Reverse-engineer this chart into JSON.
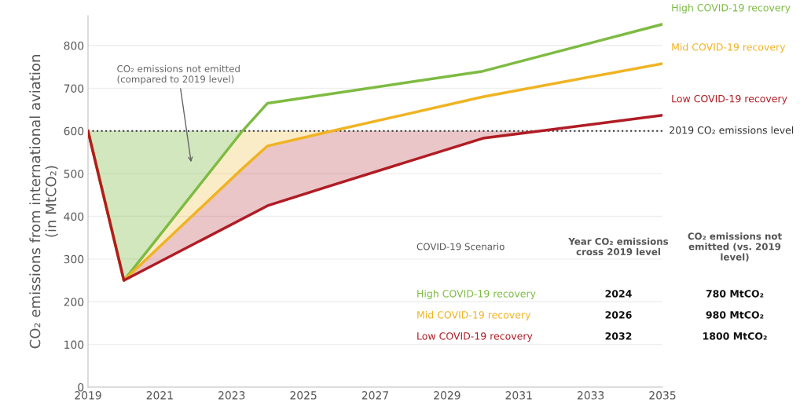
{
  "chart_data": {
    "type": "line",
    "ylabel": "CO₂ emissions from international aviation\n(in MtCO₂)",
    "series": [
      {
        "name": "High COVID-19 recovery",
        "color": "#7dbb42",
        "x": [
          2019,
          2020,
          2023.3,
          2024,
          2030,
          2035
        ],
        "values": [
          600,
          250,
          600,
          665,
          740,
          850
        ],
        "lower": [
          600,
          250,
          600,
          null,
          null,
          null
        ],
        "upper": [
          600,
          600,
          600,
          null,
          null,
          null
        ]
      },
      {
        "name": "Mid COVID-19 recovery",
        "color": "#f0b323",
        "x": [
          2019,
          2020,
          2023.3,
          2024,
          2025.8,
          2030,
          2035
        ],
        "values": [
          600,
          250,
          512,
          565,
          600,
          680,
          758
        ],
        "lower": [
          600,
          250,
          512,
          565,
          600,
          null,
          null
        ],
        "upper": [
          600,
          250,
          600,
          600,
          600,
          null,
          null
        ]
      },
      {
        "name": "Low COVID-19 recovery",
        "color": "#b01c24",
        "x": [
          2019,
          2020,
          2024,
          2025.8,
          2030,
          2031.6,
          2035
        ],
        "values": [
          600,
          250,
          425,
          473,
          583,
          600,
          637
        ],
        "lower": [
          600,
          250,
          425,
          473,
          583,
          600,
          null
        ],
        "upper": [
          600,
          250,
          565,
          600,
          600,
          600,
          null
        ]
      }
    ],
    "xlim": [
      2019,
      2035
    ],
    "xticks": [
      2019,
      2021,
      2023,
      2025,
      2027,
      2029,
      2031,
      2033,
      2035
    ],
    "ylim": [
      0,
      870
    ],
    "yticks": [
      0,
      100,
      200,
      300,
      400,
      500,
      600,
      700,
      800
    ],
    "grid": "y",
    "marker": "none",
    "line_style": "solid",
    "ref_lines": [
      {
        "axis": "y",
        "value": 600,
        "label": "2019 CO₂ emissions level",
        "color": "#333333",
        "line_style": "dotted"
      }
    ],
    "annotations": [
      "CO₂ emissions not emitted\n(compared to 2019 level)",
      "COVID-19 Scenario",
      "Year CO₂ emissions\ncross 2019 level",
      "CO₂ emissions not\nemitted (vs. 2019\nlevel)",
      "High COVID-19 recovery",
      "2024",
      "780 MtCO₂",
      "Mid COVID-19 recovery",
      "2026",
      "980 MtCO₂",
      "Low COVID-19 recovery",
      "2032",
      "1800 MtCO₂"
    ]
  }
}
